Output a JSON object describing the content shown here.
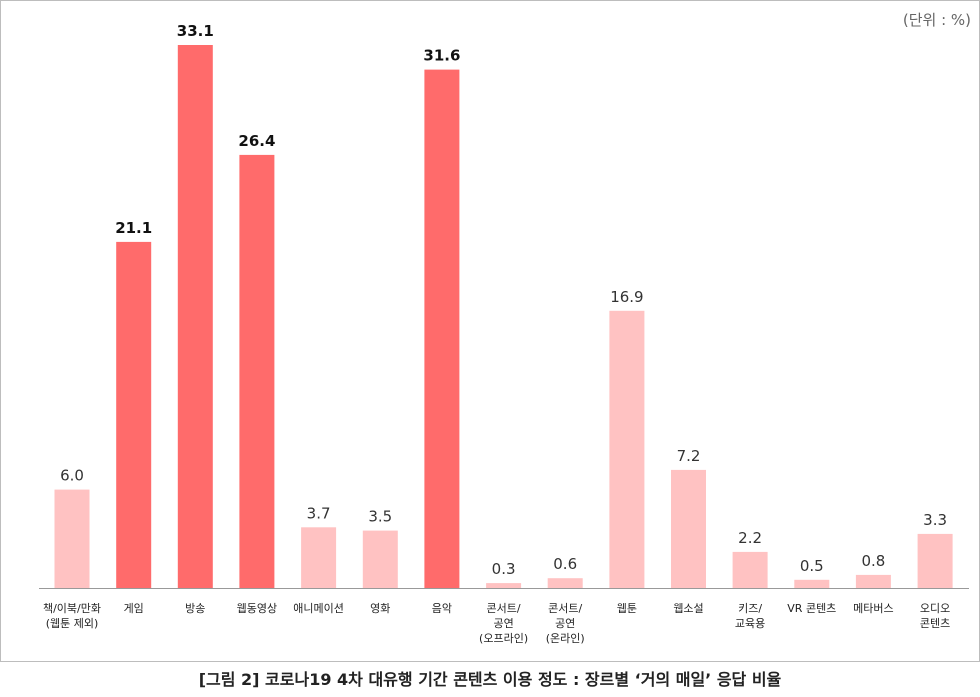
{
  "unit_label": "(단위 : %)",
  "caption": "[그림 2] 코로나19 4차 대유행 기간 콘텐츠 이용 정도 : 장르별 ‘거의 매일’ 응답 비율",
  "colors": {
    "highlight": "#ff6b6b",
    "normal": "#ffc2c2",
    "baseline": "#999999"
  },
  "chart_data": {
    "type": "bar",
    "title": "",
    "xlabel": "",
    "ylabel": "",
    "ylim": [
      0,
      33.1
    ],
    "grid": false,
    "categories": [
      [
        "책/이북/만화",
        "(웹툰 제외)"
      ],
      [
        "게임"
      ],
      [
        "방송"
      ],
      [
        "웹동영상"
      ],
      [
        "애니메이션"
      ],
      [
        "영화"
      ],
      [
        "음악"
      ],
      [
        "콘서트/",
        "공연",
        "(오프라인)"
      ],
      [
        "콘서트/",
        "공연",
        "(온라인)"
      ],
      [
        "웹툰"
      ],
      [
        "웹소설"
      ],
      [
        "키즈/",
        "교육용"
      ],
      [
        "VR 콘텐츠"
      ],
      [
        "메타버스"
      ],
      [
        "오디오",
        "콘텐츠"
      ]
    ],
    "values": [
      6.0,
      21.1,
      33.1,
      26.4,
      3.7,
      3.5,
      31.6,
      0.3,
      0.6,
      16.9,
      7.2,
      2.2,
      0.5,
      0.8,
      3.3
    ],
    "value_labels": [
      "6.0",
      "21.1",
      "33.1",
      "26.4",
      "3.7",
      "3.5",
      "31.6",
      "0.3",
      "0.6",
      "16.9",
      "7.2",
      "2.2",
      "0.5",
      "0.8",
      "3.3"
    ],
    "highlighted": [
      false,
      true,
      true,
      true,
      false,
      false,
      true,
      false,
      false,
      false,
      false,
      false,
      false,
      false,
      false
    ]
  }
}
